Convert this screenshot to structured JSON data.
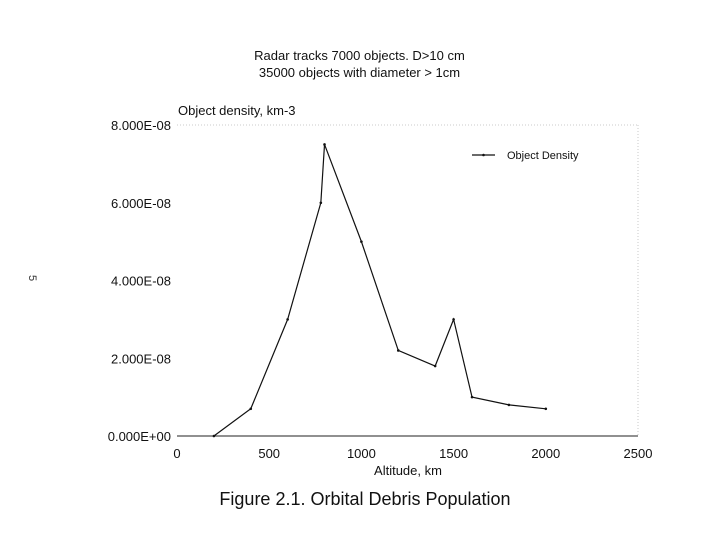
{
  "chart_data": {
    "type": "line",
    "title": "Radar tracks 7000 objects. D>10 cm",
    "subtitle": "35000 objects with diameter > 1cm",
    "ylabel": "Object density, km-3",
    "xlabel": "Altitude, km",
    "x_ticks": [
      "0",
      "500",
      "1000",
      "1500",
      "2000",
      "2500"
    ],
    "y_ticks": [
      "0.000E+00",
      "2.000E-08",
      "4.000E-08",
      "6.000E-08",
      "8.000E-08"
    ],
    "xlim": [
      0,
      2500
    ],
    "ylim": [
      0,
      8e-08
    ],
    "grid": false,
    "legend_position": "top-right",
    "series": [
      {
        "name": "Object Density",
        "color": "#111111",
        "x": [
          200,
          400,
          600,
          780,
          800,
          1000,
          1200,
          1400,
          1500,
          1600,
          1800,
          2000
        ],
        "values": [
          0,
          7e-09,
          3e-08,
          6e-08,
          7.5e-08,
          5e-08,
          2.2e-08,
          1.8e-08,
          3e-08,
          1e-08,
          8e-09,
          7e-09
        ]
      }
    ]
  },
  "caption": "Figure 2.1. Orbital Debris Population",
  "page_mark": "5"
}
